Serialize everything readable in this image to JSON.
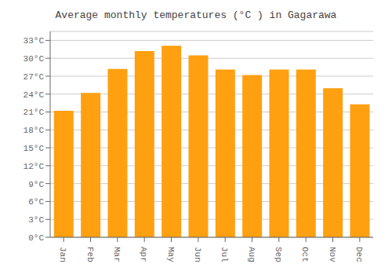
{
  "chart_data": {
    "type": "bar",
    "title": "Average monthly temperatures (°C ) in Gagarawa",
    "categories": [
      "Jan",
      "Feb",
      "Mar",
      "Apr",
      "May",
      "Jun",
      "Jul",
      "Aug",
      "Sep",
      "Oct",
      "Nov",
      "Dec"
    ],
    "values": [
      21.2,
      24.2,
      28.2,
      31.2,
      32.1,
      30.5,
      28.1,
      27.2,
      28.1,
      28.1,
      25.0,
      22.3
    ],
    "color": "#FFA010",
    "ylim": [
      0,
      34.5
    ],
    "yticks": [
      {
        "value": 0,
        "label": "0°C"
      },
      {
        "value": 3,
        "label": "3°C"
      },
      {
        "value": 6,
        "label": "6°C"
      },
      {
        "value": 9,
        "label": "9°C"
      },
      {
        "value": 12,
        "label": "12°C"
      },
      {
        "value": 15,
        "label": "15°C"
      },
      {
        "value": 18,
        "label": "18°C"
      },
      {
        "value": 21,
        "label": "21°C"
      },
      {
        "value": 24,
        "label": "24°C"
      },
      {
        "value": 27,
        "label": "27°C"
      },
      {
        "value": 30,
        "label": "30°C"
      },
      {
        "value": 33,
        "label": "33°C"
      }
    ],
    "grid": true
  }
}
